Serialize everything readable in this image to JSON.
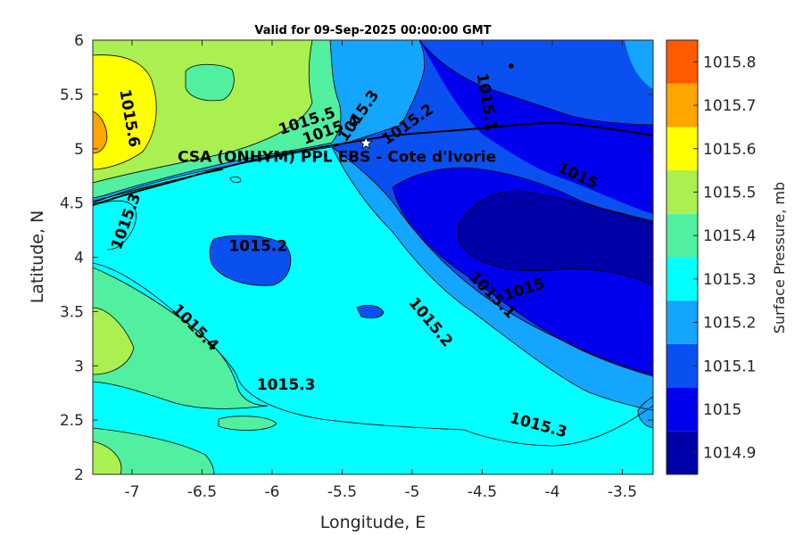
{
  "title": "Valid for 09-Sep-2025 00:00:00 GMT",
  "x_axis": {
    "label": "Longitude, E",
    "ticks": [
      -7,
      -6.5,
      -6,
      -5.5,
      -5,
      -4.5,
      -4,
      -3.5
    ],
    "tick_labels": [
      "-7",
      "-6.5",
      "-6",
      "-5.5",
      "-5",
      "-4.5",
      "-4",
      "-3.5"
    ],
    "range": [
      -7.28,
      -3.28
    ]
  },
  "y_axis": {
    "label": "Latitude, N",
    "ticks": [
      2,
      2.5,
      3,
      3.5,
      4,
      4.5,
      5,
      5.5,
      6
    ],
    "tick_labels": [
      "2",
      "2.5",
      "3",
      "3.5",
      "4",
      "4.5",
      "5",
      "5.5",
      "6"
    ],
    "range": [
      2,
      6
    ]
  },
  "site": {
    "label": "CSA (ONHYM) PPL EBS  - Cote d'Ivorie",
    "lon": -5.33,
    "lat": 5.05,
    "marker": "star-icon"
  },
  "colorbar": {
    "title": "Surface Pressure, mb",
    "levels": [
      "1014.9",
      "1015",
      "1015.1",
      "1015.2",
      "1015.3",
      "1015.4",
      "1015.5",
      "1015.6",
      "1015.7",
      "1015.8"
    ],
    "colors": [
      "#0000a8",
      "#0000ee",
      "#0a50f0",
      "#14a5ff",
      "#00ffff",
      "#50f0a0",
      "#aaf050",
      "#ffff00",
      "#ffa500",
      "#ff5a00"
    ]
  },
  "contour_labels": [
    {
      "text": "1015.6",
      "lon": -7.02,
      "lat": 5.28,
      "angle": 80
    },
    {
      "text": "1015.5",
      "lon": -5.75,
      "lat": 5.25,
      "angle": -18
    },
    {
      "text": "1015.4",
      "lon": -5.58,
      "lat": 5.17,
      "angle": -20
    },
    {
      "text": "1015.3",
      "lon": -5.38,
      "lat": 5.3,
      "angle": -55
    },
    {
      "text": "1015.2",
      "lon": -5.03,
      "lat": 5.22,
      "angle": -35
    },
    {
      "text": "1015.1",
      "lon": -4.47,
      "lat": 5.43,
      "angle": 80
    },
    {
      "text": "1015",
      "lon": -3.82,
      "lat": 4.75,
      "angle": 25
    },
    {
      "text": "1015.3",
      "lon": -7.04,
      "lat": 4.33,
      "angle": -70
    },
    {
      "text": "1015.2",
      "lon": -6.1,
      "lat": 4.1,
      "angle": 0
    },
    {
      "text": "1015.1",
      "lon": -4.43,
      "lat": 3.65,
      "angle": 45
    },
    {
      "text": "1015",
      "lon": -4.2,
      "lat": 3.7,
      "angle": -18
    },
    {
      "text": "1015.2",
      "lon": -4.87,
      "lat": 3.4,
      "angle": 50
    },
    {
      "text": "1015.4",
      "lon": -6.55,
      "lat": 3.35,
      "angle": 45
    },
    {
      "text": "1015.3",
      "lon": -5.9,
      "lat": 2.82,
      "angle": 0
    },
    {
      "text": "1015.3",
      "lon": -4.1,
      "lat": 2.45,
      "angle": 15
    }
  ]
}
